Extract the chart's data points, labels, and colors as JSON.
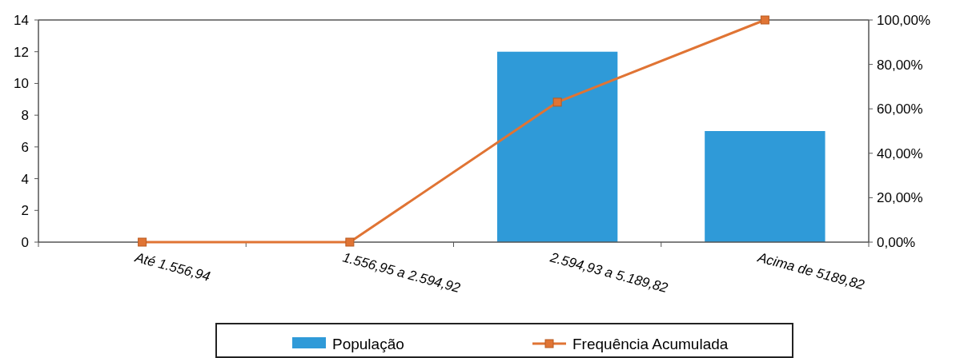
{
  "chart_data": {
    "type": "bar",
    "categories": [
      "Até 1.556,94",
      "1.556,95 a 2.594,92",
      "2.594,93 a 5.189,82",
      "Acima de 5189,82"
    ],
    "series": [
      {
        "name": "População",
        "color": "#2f9ad8",
        "values": [
          0,
          0,
          12,
          7
        ]
      },
      {
        "name": "Frequência Acumulada",
        "type": "line",
        "axis": "y2",
        "color": "#e07434",
        "marker": "square",
        "values": [
          0,
          0,
          63,
          100
        ]
      }
    ],
    "ylim": [
      0,
      14
    ],
    "yticks": [
      0,
      2,
      4,
      6,
      8,
      10,
      12,
      14
    ],
    "y2lim": [
      0,
      100
    ],
    "y2ticks": [
      {
        "value": 0,
        "label": "0,00%"
      },
      {
        "value": 20,
        "label": "20,00%"
      },
      {
        "value": 40,
        "label": "40,00%"
      },
      {
        "value": 60,
        "label": "60,00%"
      },
      {
        "value": 80,
        "label": "80,00%"
      },
      {
        "value": 100,
        "label": "100,00%"
      }
    ],
    "legend": "bottom"
  }
}
